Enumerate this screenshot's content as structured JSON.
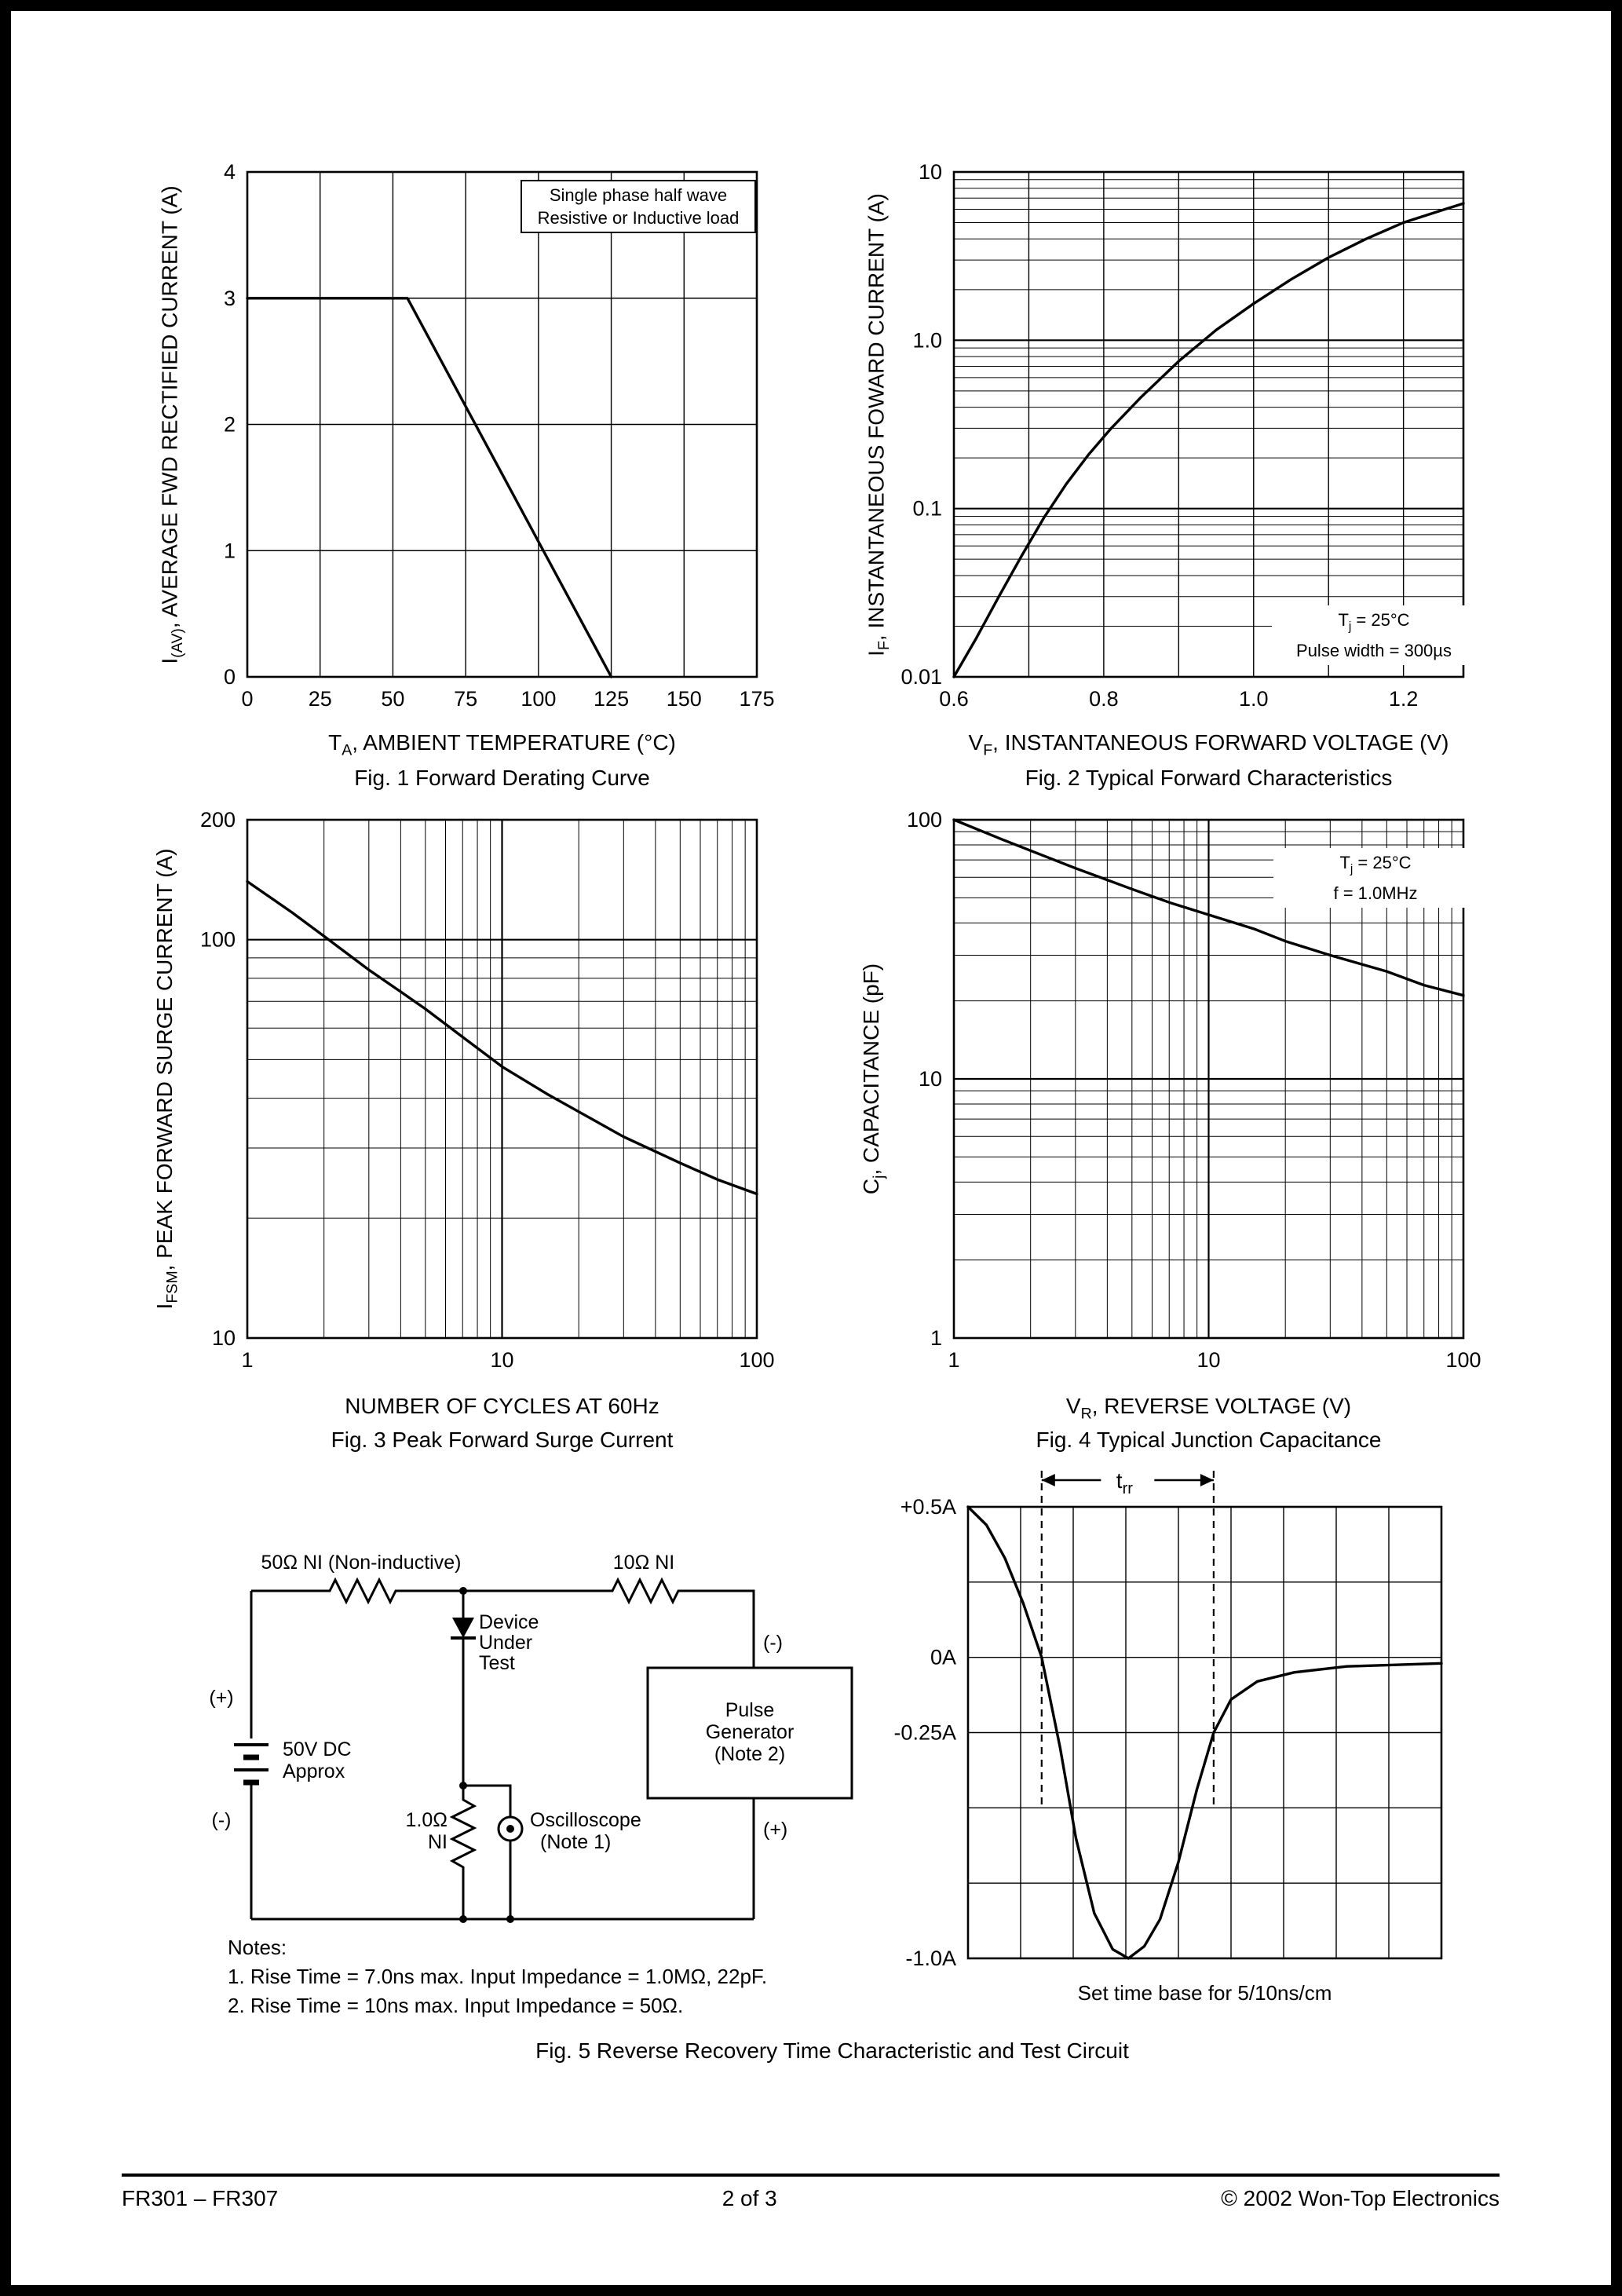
{
  "page": {
    "footer": {
      "left": "FR301 – FR307",
      "center": "2 of 3",
      "right": "© 2002 Won-Top Electronics"
    }
  },
  "fig1": {
    "caption": "Fig. 1  Forward Derating Curve",
    "xlabel": {
      "pre": "T",
      "sub": "A",
      "rest": ", AMBIENT TEMPERATURE (°C)"
    },
    "ylabel": {
      "pre": "I",
      "sub": "(AV)",
      "rest": ", AVERAGE FWD RECTIFIED CURRENT (A)"
    },
    "note_line1": "Single phase half wave",
    "note_line2": "Resistive or Inductive load"
  },
  "fig2": {
    "caption": "Fig. 2  Typical Forward Characteristics",
    "xlabel": {
      "pre": "V",
      "sub": "F",
      "rest": ", INSTANTANEOUS FORWARD VOLTAGE (V)"
    },
    "ylabel": {
      "pre": "I",
      "sub": "F",
      "rest": ", INSTANTANEOUS FOWARD CURRENT (A)"
    },
    "note1": {
      "pre": "T",
      "sub": "j",
      "rest": " = 25°C"
    },
    "note2": "Pulse width = 300µs"
  },
  "fig3": {
    "caption": "Fig. 3  Peak Forward Surge Current",
    "xlabel_text": "NUMBER OF CYCLES AT 60Hz",
    "ylabel": {
      "pre": "I",
      "sub": "FSM",
      "rest": ", PEAK FORWARD SURGE CURRENT (A)"
    }
  },
  "fig4": {
    "caption": "Fig. 4  Typical Junction Capacitance",
    "xlabel": {
      "pre": "V",
      "sub": "R",
      "rest": ", REVERSE VOLTAGE (V)"
    },
    "ylabel": {
      "pre": "C",
      "sub": "j",
      "rest": ", CAPACITANCE (pF)"
    },
    "note1": {
      "pre": "T",
      "sub": "j",
      "rest": " = 25°C"
    },
    "note2": "f = 1.0MHz"
  },
  "fig5": {
    "caption": "Fig. 5  Reverse Recovery Time Characteristic and Test Circuit",
    "timebase": "Set time base for 5/10ns/cm",
    "notes_title": "Notes:",
    "note1": "1. Rise Time = 7.0ns max. Input Impedance = 1.0MΩ, 22pF.",
    "note2": "2. Rise Time = 10ns max. Input Impedance = 50Ω.",
    "circuit": {
      "r1": "50Ω NI (Non-inductive)",
      "r2": "10Ω NI",
      "dut1": "Device",
      "dut2": "Under",
      "dut3": "Test",
      "plus_left": "(+)",
      "minus_left": "(-)",
      "supply1": "50V DC",
      "supply2": "Approx",
      "r3a": "1.0Ω",
      "r3b": "NI",
      "osc1": "Oscilloscope",
      "osc2": "(Note 1)",
      "pg1": "Pulse",
      "pg2": "Generator",
      "pg3": "(Note 2)",
      "minus_right": "(-)",
      "plus_right": "(+)"
    }
  },
  "chart_data": {
    "fig1": {
      "type": "line",
      "title": "Fig. 1 Forward Derating Curve",
      "xlabel": "TA, AMBIENT TEMPERATURE (°C)",
      "ylabel": "I(AV), AVERAGE FWD RECTIFIED CURRENT (A)",
      "xscale": "linear",
      "yscale": "linear",
      "xlim": [
        0,
        175
      ],
      "ylim": [
        0,
        4
      ],
      "xgrid": [
        25,
        50,
        75,
        100,
        125,
        150
      ],
      "ygrid": [
        1,
        2,
        3
      ],
      "xticks": [
        {
          "v": 0,
          "label": "0"
        },
        {
          "v": 25,
          "label": "25"
        },
        {
          "v": 50,
          "label": "50"
        },
        {
          "v": 75,
          "label": "75"
        },
        {
          "v": 100,
          "label": "100"
        },
        {
          "v": 125,
          "label": "125"
        },
        {
          "v": 150,
          "label": "150"
        },
        {
          "v": 175,
          "label": "175"
        }
      ],
      "yticks": [
        {
          "v": 0,
          "label": "0"
        },
        {
          "v": 1,
          "label": "1"
        },
        {
          "v": 2,
          "label": "2"
        },
        {
          "v": 3,
          "label": "3"
        },
        {
          "v": 4,
          "label": "4"
        }
      ],
      "series": [
        {
          "name": "average forward rectified current derating",
          "points": [
            [
              0,
              3
            ],
            [
              55,
              3
            ],
            [
              125,
              0
            ]
          ]
        }
      ]
    },
    "fig2": {
      "type": "line",
      "title": "Fig. 2 Typical Forward Characteristics",
      "xlabel": "VF, INSTANTANEOUS FORWARD VOLTAGE (V)",
      "ylabel": "IF, INSTANTANEOUS FOWARD CURRENT (A)",
      "annotation": [
        "Tj = 25°C",
        "Pulse width = 300µs"
      ],
      "xscale": "linear",
      "yscale": "log",
      "xlim": [
        0.6,
        1.28
      ],
      "ylim": [
        0.01,
        10
      ],
      "xgrid": [
        0.7,
        0.8,
        0.9,
        1.0,
        1.1,
        1.2
      ],
      "xticks": [
        {
          "v": 0.6,
          "label": "0.6"
        },
        {
          "v": 0.8,
          "label": "0.8"
        },
        {
          "v": 1.0,
          "label": "1.0"
        },
        {
          "v": 1.2,
          "label": "1.2"
        }
      ],
      "yticks": [
        {
          "v": 10,
          "label": "10"
        },
        {
          "v": 1,
          "label": "1.0"
        },
        {
          "v": 0.1,
          "label": "0.1"
        },
        {
          "v": 0.01,
          "label": "0.01"
        }
      ],
      "series": [
        {
          "name": "instantaneous forward current",
          "points": [
            [
              0.6,
              0.01
            ],
            [
              0.63,
              0.017
            ],
            [
              0.66,
              0.03
            ],
            [
              0.69,
              0.052
            ],
            [
              0.72,
              0.088
            ],
            [
              0.75,
              0.14
            ],
            [
              0.78,
              0.21
            ],
            [
              0.81,
              0.3
            ],
            [
              0.85,
              0.46
            ],
            [
              0.9,
              0.75
            ],
            [
              0.95,
              1.15
            ],
            [
              1.0,
              1.65
            ],
            [
              1.05,
              2.3
            ],
            [
              1.1,
              3.1
            ],
            [
              1.15,
              4.0
            ],
            [
              1.2,
              5.0
            ],
            [
              1.25,
              5.9
            ],
            [
              1.28,
              6.5
            ]
          ]
        }
      ]
    },
    "fig3": {
      "type": "line",
      "title": "Fig. 3 Peak Forward Surge Current",
      "xlabel": "NUMBER OF CYCLES AT 60Hz",
      "ylabel": "IFSM, PEAK FORWARD SURGE CURRENT (A)",
      "xscale": "log",
      "yscale": "log",
      "xlim": [
        1,
        100
      ],
      "ylim": [
        10,
        200
      ],
      "xticks": [
        {
          "v": 1,
          "label": "1"
        },
        {
          "v": 10,
          "label": "10"
        },
        {
          "v": 100,
          "label": "100"
        }
      ],
      "yticks": [
        {
          "v": 200,
          "label": "200"
        },
        {
          "v": 100,
          "label": "100"
        },
        {
          "v": 10,
          "label": "10"
        }
      ],
      "series": [
        {
          "name": "peak forward surge current",
          "points": [
            [
              1,
              140
            ],
            [
              1.5,
              117
            ],
            [
              2,
              102
            ],
            [
              3,
              84
            ],
            [
              4,
              74
            ],
            [
              5,
              67
            ],
            [
              7,
              57
            ],
            [
              10,
              48
            ],
            [
              15,
              41
            ],
            [
              20,
              37
            ],
            [
              30,
              32
            ],
            [
              50,
              27.5
            ],
            [
              70,
              25
            ],
            [
              100,
              23
            ]
          ]
        }
      ]
    },
    "fig4": {
      "type": "line",
      "title": "Fig. 4 Typical Junction Capacitance",
      "xlabel": "VR, REVERSE VOLTAGE (V)",
      "ylabel": "Cj, CAPACITANCE (pF)",
      "annotation": [
        "Tj = 25°C",
        "f = 1.0MHz"
      ],
      "xscale": "log",
      "yscale": "log",
      "xlim": [
        1,
        100
      ],
      "ylim": [
        1,
        100
      ],
      "xticks": [
        {
          "v": 1,
          "label": "1"
        },
        {
          "v": 10,
          "label": "10"
        },
        {
          "v": 100,
          "label": "100"
        }
      ],
      "yticks": [
        {
          "v": 100,
          "label": "100"
        },
        {
          "v": 10,
          "label": "10"
        },
        {
          "v": 1,
          "label": "1"
        }
      ],
      "series": [
        {
          "name": "junction capacitance",
          "points": [
            [
              1,
              100
            ],
            [
              1.5,
              85
            ],
            [
              2,
              76
            ],
            [
              3,
              65
            ],
            [
              5,
              54
            ],
            [
              7,
              48
            ],
            [
              10,
              43
            ],
            [
              15,
              38
            ],
            [
              20,
              34
            ],
            [
              30,
              30
            ],
            [
              50,
              26
            ],
            [
              70,
              23
            ],
            [
              100,
              21
            ]
          ]
        }
      ]
    },
    "fig5_waveform": {
      "type": "line",
      "title": "Reverse Recovery Time Characteristic",
      "xlabel": "time (5/10ns per division)",
      "ylabel": "current (A)",
      "xscale": "linear",
      "yscale": "linear",
      "xlim": [
        0,
        9
      ],
      "ylim": [
        -1,
        0.5
      ],
      "xgrid": [
        1,
        2,
        3,
        4,
        5,
        6,
        7,
        8
      ],
      "ygrid": [
        0.25,
        0,
        -0.25,
        -0.5,
        -0.75
      ],
      "yticks": [
        {
          "v": 0.5,
          "label": "+0.5A"
        },
        {
          "v": 0,
          "label": "0A"
        },
        {
          "v": -0.25,
          "label": "-0.25A"
        },
        {
          "v": -1,
          "label": "-1.0A"
        }
      ],
      "trr": {
        "x1": 1.4,
        "x2": 4.67,
        "label_pre": "t",
        "label_sub": "rr"
      },
      "series": [
        {
          "name": "reverse recovery waveform",
          "points": [
            [
              0,
              0.5
            ],
            [
              0.35,
              0.44
            ],
            [
              0.7,
              0.33
            ],
            [
              1.05,
              0.18
            ],
            [
              1.4,
              0
            ],
            [
              1.75,
              -0.3
            ],
            [
              2.05,
              -0.6
            ],
            [
              2.4,
              -0.85
            ],
            [
              2.75,
              -0.97
            ],
            [
              3.05,
              -1.0
            ],
            [
              3.35,
              -0.96
            ],
            [
              3.65,
              -0.87
            ],
            [
              4.0,
              -0.68
            ],
            [
              4.35,
              -0.44
            ],
            [
              4.67,
              -0.25
            ],
            [
              5.0,
              -0.14
            ],
            [
              5.5,
              -0.08
            ],
            [
              6.2,
              -0.05
            ],
            [
              7.2,
              -0.03
            ],
            [
              9,
              -0.02
            ]
          ]
        }
      ]
    }
  }
}
